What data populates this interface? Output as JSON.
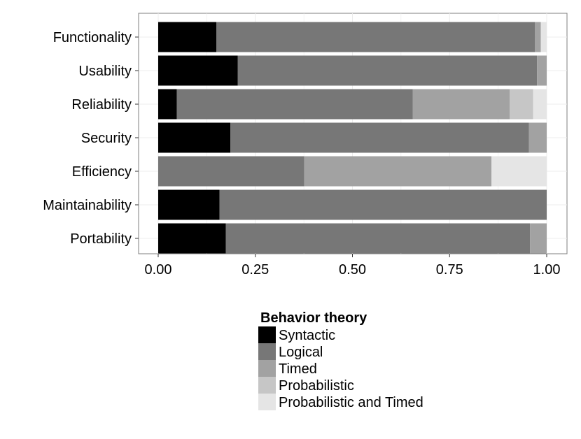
{
  "chart_data": {
    "type": "bar",
    "orientation": "horizontal",
    "stacked": true,
    "title": "",
    "xlabel": "",
    "ylabel": "",
    "xlim": [
      0,
      1
    ],
    "x_ticks": [
      0,
      0.25,
      0.5,
      0.75,
      1.0
    ],
    "x_tick_labels": [
      "0.00",
      "0.25",
      "0.50",
      "0.75",
      "1.00"
    ],
    "grid": true,
    "legend_position": "bottom",
    "categories": [
      "Functionality",
      "Usability",
      "Reliability",
      "Security",
      "Efficiency",
      "Maintainability",
      "Portability"
    ],
    "series": [
      {
        "name": "Syntactic",
        "color": "#000000",
        "values": [
          0.15,
          0.205,
          0.048,
          0.186,
          0.0,
          0.158,
          0.174
        ]
      },
      {
        "name": "Logical",
        "color": "#777777",
        "values": [
          0.82,
          0.77,
          0.607,
          0.768,
          0.376,
          0.842,
          0.783
        ]
      },
      {
        "name": "Timed",
        "color": "#a2a2a2",
        "values": [
          0.015,
          0.025,
          0.25,
          0.046,
          0.482,
          0.0,
          0.043
        ]
      },
      {
        "name": "Probabilistic",
        "color": "#c6c6c6",
        "values": [
          0.0,
          0.0,
          0.06,
          0.0,
          0.0,
          0.0,
          0.0
        ]
      },
      {
        "name": "Probabilistic and Timed",
        "color": "#e5e5e5",
        "values": [
          0.015,
          0.0,
          0.035,
          0.0,
          0.142,
          0.0,
          0.0
        ]
      }
    ],
    "legend": {
      "title": "Behavior theory",
      "entries": [
        "Syntactic",
        "Logical",
        "Timed",
        "Probabilistic",
        "Probabilistic and Timed"
      ]
    },
    "colors": {
      "panel_border": "#7f7f7f",
      "grid": "#ececec",
      "tick": "#333333",
      "text": "#000000"
    }
  }
}
